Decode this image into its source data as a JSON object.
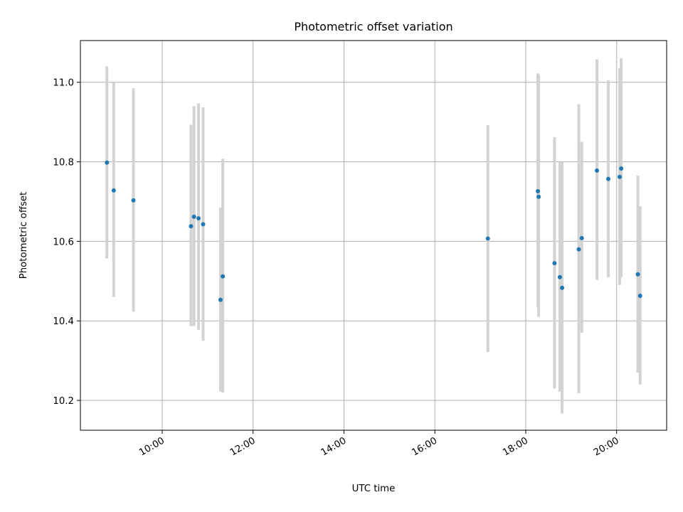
{
  "chart_data": {
    "type": "scatter",
    "title": "Photometric offset variation",
    "xlabel": "UTC time",
    "ylabel": "Photometric offset",
    "x_unit": "hours UTC",
    "xlim": [
      "08:12",
      "21:06"
    ],
    "ylim": [
      10.125,
      11.105
    ],
    "grid": true,
    "colors": {
      "point": "#1f77b4",
      "errorbar": "#d3d3d3",
      "grid": "#b0b0b0"
    },
    "x_ticks": [
      "10:00",
      "12:00",
      "14:00",
      "16:00",
      "18:00",
      "20:00"
    ],
    "y_ticks": [
      "10.2",
      "10.4",
      "10.6",
      "10.8",
      "11.0"
    ],
    "points": [
      {
        "x": "08:47",
        "y": 10.798,
        "low": 10.557,
        "high": 11.04
      },
      {
        "x": "08:56",
        "y": 10.728,
        "low": 10.46,
        "high": 11.0
      },
      {
        "x": "09:22",
        "y": 10.703,
        "low": 10.423,
        "high": 10.985
      },
      {
        "x": "10:38",
        "y": 10.638,
        "low": 10.387,
        "high": 10.893
      },
      {
        "x": "10:42",
        "y": 10.662,
        "low": 10.387,
        "high": 10.94
      },
      {
        "x": "10:48",
        "y": 10.658,
        "low": 10.377,
        "high": 10.947
      },
      {
        "x": "10:54",
        "y": 10.643,
        "low": 10.35,
        "high": 10.937
      },
      {
        "x": "11:17",
        "y": 10.453,
        "low": 10.222,
        "high": 10.685
      },
      {
        "x": "11:20",
        "y": 10.512,
        "low": 10.22,
        "high": 10.808
      },
      {
        "x": "17:10",
        "y": 10.607,
        "low": 10.322,
        "high": 10.892
      },
      {
        "x": "18:16",
        "y": 10.726,
        "low": 10.433,
        "high": 11.022
      },
      {
        "x": "18:17",
        "y": 10.712,
        "low": 10.41,
        "high": 11.017
      },
      {
        "x": "18:38",
        "y": 10.545,
        "low": 10.23,
        "high": 10.862
      },
      {
        "x": "18:45",
        "y": 10.51,
        "low": 10.222,
        "high": 10.8
      },
      {
        "x": "18:48",
        "y": 10.483,
        "low": 10.167,
        "high": 10.8
      },
      {
        "x": "19:10",
        "y": 10.58,
        "low": 10.218,
        "high": 10.945
      },
      {
        "x": "19:14",
        "y": 10.608,
        "low": 10.37,
        "high": 10.85
      },
      {
        "x": "19:34",
        "y": 10.778,
        "low": 10.503,
        "high": 11.058
      },
      {
        "x": "19:49",
        "y": 10.757,
        "low": 10.51,
        "high": 11.005
      },
      {
        "x": "20:04",
        "y": 10.762,
        "low": 10.49,
        "high": 11.035
      },
      {
        "x": "20:06",
        "y": 10.783,
        "low": 10.51,
        "high": 11.06
      },
      {
        "x": "20:28",
        "y": 10.517,
        "low": 10.27,
        "high": 10.765
      },
      {
        "x": "20:31",
        "y": 10.463,
        "low": 10.24,
        "high": 10.688
      }
    ]
  }
}
